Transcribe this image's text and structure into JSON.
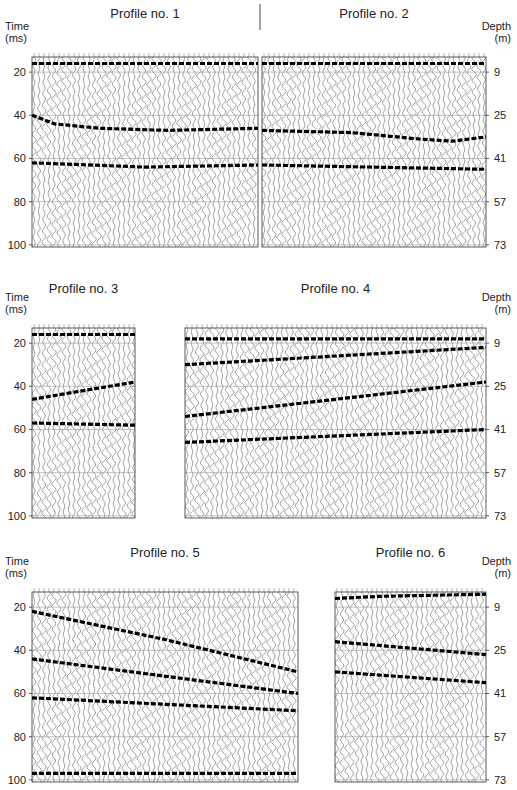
{
  "chart_data": [
    {
      "type": "seismic",
      "title": "Profile no. 1",
      "y_label": "Time (ms)",
      "xlim": [
        0,
        1
      ],
      "ylim": [
        13,
        101
      ],
      "yticks": [
        20,
        40,
        60,
        80,
        100
      ],
      "grid": true,
      "series": [
        {
          "color": "#000000",
          "x": [
            0,
            1
          ],
          "values": [
            16,
            16
          ]
        },
        {
          "color": "#000000",
          "x": [
            0,
            0.1,
            0.3,
            0.6,
            1
          ],
          "values": [
            40,
            44,
            46,
            47,
            46
          ]
        },
        {
          "color": "#000000",
          "x": [
            0,
            0.5,
            1
          ],
          "values": [
            62,
            64,
            63
          ]
        }
      ]
    },
    {
      "type": "seismic",
      "title": "Profile no. 2",
      "y2_label": "Depth (m)",
      "xlim": [
        0,
        1
      ],
      "ylim": [
        13,
        101
      ],
      "y2lim": [
        3.4,
        73.8
      ],
      "y2ticks": [
        9,
        25,
        41,
        57,
        73
      ],
      "grid": true,
      "series": [
        {
          "color": "#000000",
          "x": [
            0,
            1
          ],
          "values": [
            16,
            16
          ]
        },
        {
          "color": "#000000",
          "x": [
            0,
            0.4,
            0.7,
            0.85,
            1
          ],
          "values": [
            47,
            48,
            51,
            52,
            50
          ]
        },
        {
          "color": "#000000",
          "x": [
            0,
            1
          ],
          "values": [
            63,
            65
          ]
        }
      ]
    },
    {
      "type": "seismic",
      "title": "Profile no. 3",
      "y_label": "Time (ms)",
      "xlim": [
        0,
        1
      ],
      "ylim": [
        13,
        101
      ],
      "yticks": [
        20,
        40,
        60,
        80,
        100
      ],
      "grid": true,
      "series": [
        {
          "color": "#000000",
          "x": [
            0,
            1
          ],
          "values": [
            16,
            16
          ]
        },
        {
          "color": "#000000",
          "x": [
            0,
            1
          ],
          "values": [
            46,
            38
          ]
        },
        {
          "color": "#000000",
          "x": [
            0,
            1
          ],
          "values": [
            57,
            58
          ]
        }
      ]
    },
    {
      "type": "seismic",
      "title": "Profile no. 4",
      "y2_label": "Depth (m)",
      "xlim": [
        0,
        1
      ],
      "ylim": [
        13,
        101
      ],
      "y2lim": [
        3.4,
        73.8
      ],
      "y2ticks": [
        9,
        25,
        41,
        57,
        73
      ],
      "grid": true,
      "series": [
        {
          "color": "#000000",
          "x": [
            0,
            1
          ],
          "values": [
            18,
            18
          ]
        },
        {
          "color": "#000000",
          "x": [
            0,
            1
          ],
          "values": [
            30,
            22
          ]
        },
        {
          "color": "#000000",
          "x": [
            0,
            0.5,
            1
          ],
          "values": [
            54,
            46,
            38
          ]
        },
        {
          "color": "#000000",
          "x": [
            0,
            1
          ],
          "values": [
            66,
            60
          ]
        }
      ]
    },
    {
      "type": "seismic",
      "title": "Profile no. 5",
      "y_label": "Time (ms)",
      "xlim": [
        0,
        1
      ],
      "ylim": [
        13,
        101
      ],
      "yticks": [
        20,
        40,
        60,
        80,
        100
      ],
      "grid": true,
      "series": [
        {
          "color": "#000000",
          "x": [
            0,
            0.5,
            1
          ],
          "values": [
            22,
            35,
            50
          ]
        },
        {
          "color": "#000000",
          "x": [
            0,
            1
          ],
          "values": [
            44,
            60
          ]
        },
        {
          "color": "#000000",
          "x": [
            0,
            1
          ],
          "values": [
            62,
            68
          ]
        },
        {
          "color": "#000000",
          "x": [
            0,
            1
          ],
          "values": [
            97,
            97
          ]
        }
      ]
    },
    {
      "type": "seismic",
      "title": "Profile no. 6",
      "y2_label": "Depth (m)",
      "xlim": [
        0,
        1
      ],
      "ylim": [
        13,
        101
      ],
      "y2lim": [
        3.4,
        73.8
      ],
      "y2ticks": [
        9,
        25,
        41,
        57,
        73
      ],
      "grid": true,
      "series": [
        {
          "color": "#000000",
          "x": [
            0,
            0.3,
            1
          ],
          "values": [
            16,
            15,
            14
          ]
        },
        {
          "color": "#000000",
          "x": [
            0,
            1
          ],
          "values": [
            36,
            42
          ]
        },
        {
          "color": "#000000",
          "x": [
            0,
            1
          ],
          "values": [
            50,
            55
          ]
        }
      ]
    }
  ]
}
